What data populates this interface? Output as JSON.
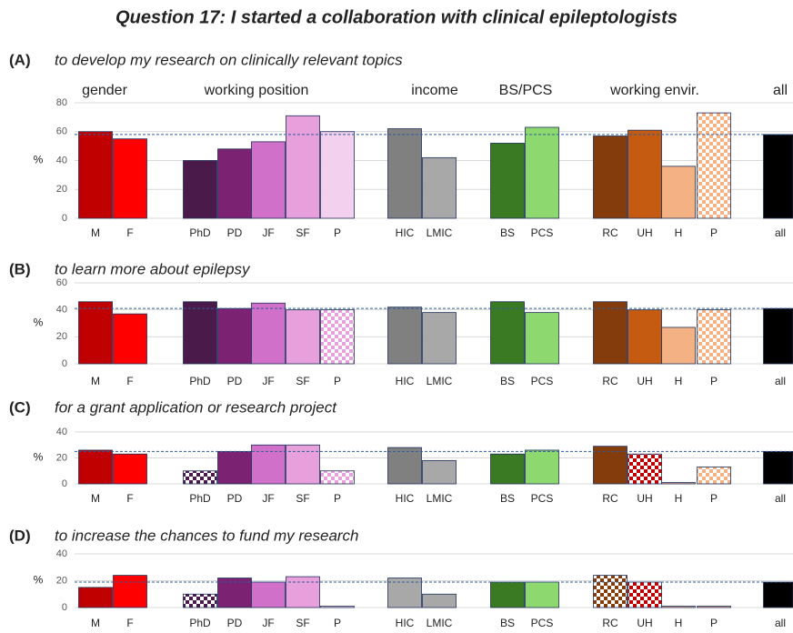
{
  "title": "Question 17: I started a collaboration with clinical epileptologists",
  "groups": [
    "gender",
    "working position",
    "income",
    "BS/PCS",
    "working envir.",
    "all"
  ],
  "chart_data": [
    {
      "type": "bar",
      "label": "(A)",
      "title": "to develop my research on clinically relevant topics",
      "ylabel": "%",
      "categories": [
        "M",
        "F",
        "PhD",
        "PD",
        "JF",
        "SF",
        "P",
        "HIC",
        "LMIC",
        "BS",
        "PCS",
        "RC",
        "UH",
        "H",
        "P",
        "all"
      ],
      "values": [
        60,
        55,
        40,
        48,
        53,
        71,
        60,
        62,
        42,
        52,
        63,
        57,
        61,
        36,
        73,
        58
      ],
      "colors": [
        "#c00000",
        "#ff0000",
        "#4a1a4a",
        "#7b2372",
        "#d070c8",
        "#e8a0dc",
        "#f2d0ee",
        "#808080",
        "#a8a8a8",
        "#3a7a22",
        "#8ed870",
        "#843c0c",
        "#c55a11",
        "#f4b183",
        "#f4b183",
        "#000000"
      ],
      "patterned": [
        false,
        false,
        false,
        false,
        false,
        false,
        false,
        false,
        false,
        false,
        false,
        false,
        false,
        false,
        true,
        false
      ],
      "ylim": [
        0,
        80
      ],
      "yticks": [
        0,
        20,
        40,
        60,
        80
      ],
      "grid": true
    },
    {
      "type": "bar",
      "label": "(B)",
      "title": "to learn more about epilepsy",
      "ylabel": "%",
      "categories": [
        "M",
        "F",
        "PhD",
        "PD",
        "JF",
        "SF",
        "P",
        "HIC",
        "LMIC",
        "BS",
        "PCS",
        "RC",
        "UH",
        "H",
        "P",
        "all"
      ],
      "values": [
        46,
        37,
        46,
        41,
        45,
        40,
        40,
        42,
        38,
        46,
        38,
        46,
        40,
        27,
        40,
        41
      ],
      "colors": [
        "#c00000",
        "#ff0000",
        "#4a1a4a",
        "#7b2372",
        "#d070c8",
        "#e8a0dc",
        "#e8a0dc",
        "#808080",
        "#a8a8a8",
        "#3a7a22",
        "#8ed870",
        "#843c0c",
        "#c55a11",
        "#f4b183",
        "#f4b183",
        "#000000"
      ],
      "patterned": [
        false,
        false,
        false,
        false,
        false,
        false,
        true,
        false,
        false,
        false,
        false,
        false,
        false,
        false,
        true,
        false
      ],
      "ylim": [
        0,
        60
      ],
      "yticks": [
        0,
        20,
        40,
        60
      ],
      "grid": true
    },
    {
      "type": "bar",
      "label": "(C)",
      "title": "for a grant application or research project",
      "ylabel": "%",
      "categories": [
        "M",
        "F",
        "PhD",
        "PD",
        "JF",
        "SF",
        "P",
        "HIC",
        "LMIC",
        "BS",
        "PCS",
        "RC",
        "UH",
        "H",
        "P",
        "all"
      ],
      "values": [
        26,
        23,
        10,
        25,
        30,
        30,
        10,
        28,
        18,
        23,
        26,
        29,
        23,
        1,
        13,
        25
      ],
      "colors": [
        "#c00000",
        "#ff0000",
        "#4a1a4a",
        "#7b2372",
        "#d070c8",
        "#e8a0dc",
        "#e8a0dc",
        "#808080",
        "#a8a8a8",
        "#3a7a22",
        "#8ed870",
        "#843c0c",
        "#c00000",
        "#f4b183",
        "#f4b183",
        "#000000"
      ],
      "patterned": [
        false,
        false,
        true,
        false,
        false,
        false,
        true,
        false,
        false,
        false,
        false,
        false,
        true,
        false,
        true,
        false
      ],
      "ylim": [
        0,
        40
      ],
      "yticks": [
        0,
        20,
        40
      ],
      "grid": true
    },
    {
      "type": "bar",
      "label": "(D)",
      "title": "to increase the chances to fund my research",
      "ylabel": "%",
      "categories": [
        "M",
        "F",
        "PhD",
        "PD",
        "JF",
        "SF",
        "P",
        "HIC",
        "LMIC",
        "BS",
        "PCS",
        "RC",
        "UH",
        "H",
        "P",
        "all"
      ],
      "values": [
        15,
        24,
        10,
        22,
        19,
        23,
        1,
        22,
        10,
        19,
        19,
        24,
        19,
        1,
        1,
        19
      ],
      "colors": [
        "#c00000",
        "#ff0000",
        "#4a1a4a",
        "#7b2372",
        "#d070c8",
        "#e8a0dc",
        "#f2d0ee",
        "#a8a8a8",
        "#a8a8a8",
        "#3a7a22",
        "#8ed870",
        "#843c0c",
        "#c00000",
        "#f4b183",
        "#f4b183",
        "#000000"
      ],
      "patterned": [
        false,
        false,
        true,
        false,
        false,
        false,
        false,
        false,
        false,
        false,
        false,
        true,
        true,
        false,
        false,
        false
      ],
      "ylim": [
        0,
        40
      ],
      "yticks": [
        0,
        20,
        40
      ],
      "grid": true
    }
  ]
}
